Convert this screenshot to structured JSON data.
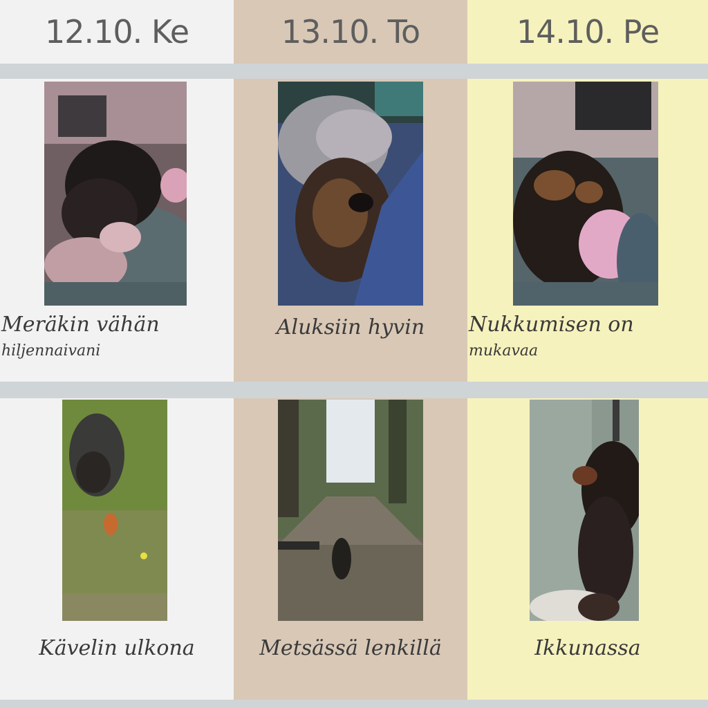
{
  "colors": {
    "col0_bg": "#f2f2f2",
    "col1_bg": "#d9c8b6",
    "col2_bg": "#f6f2bd",
    "divider": "#cfd4d6"
  },
  "days": [
    {
      "label": "12.10. Ke"
    },
    {
      "label": "13.10. To"
    },
    {
      "label": "14.10. Pe"
    }
  ],
  "rows": [
    {
      "cells": [
        {
          "photo_icon": "puppy-with-pink-toy-photo",
          "caption_line1": "Meräkin vähän",
          "caption_line2": "hiljennaivani"
        },
        {
          "photo_icon": "puppy-closeup-photo",
          "caption_line1": "Aluksiin hyvin",
          "caption_line2": ""
        },
        {
          "photo_icon": "puppy-with-pink-toy-photo",
          "caption_line1": "Nukkumisen on",
          "caption_line2": "mukavaa"
        }
      ]
    },
    {
      "cells": [
        {
          "photo_icon": "dog-in-grass-photo",
          "caption_line1": "Kävelin ulkona",
          "caption_line2": ""
        },
        {
          "photo_icon": "dog-on-forest-path-photo",
          "caption_line1": "Metsässä lenkillä",
          "caption_line2": ""
        },
        {
          "photo_icon": "dog-by-window-photo",
          "caption_line1": "Ikkunassa",
          "caption_line2": ""
        }
      ]
    }
  ]
}
